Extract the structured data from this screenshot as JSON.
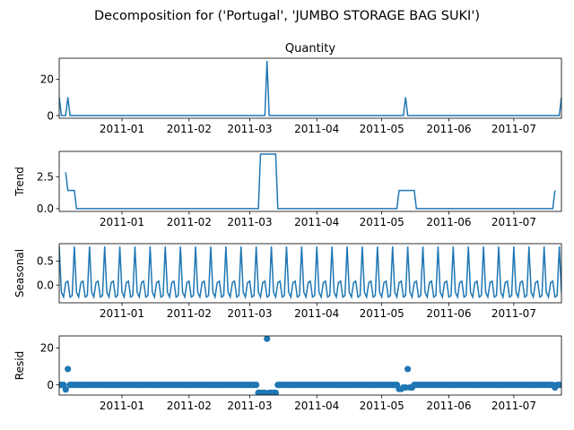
{
  "figure": {
    "suptitle": "Decomposition for ('Portugal', 'JUMBO STORAGE BAG SUKI')",
    "line_color": "#1f77b4"
  },
  "chart_data": [
    {
      "type": "line",
      "title": "Quantity",
      "ylabel": "",
      "xlim": [
        "2010-12-03",
        "2011-07-23"
      ],
      "ylim": [
        -1.5,
        31.5
      ],
      "yticks": [
        0,
        20
      ],
      "xticks": [
        "2011-01",
        "2011-02",
        "2011-03",
        "2011-04",
        "2011-05",
        "2011-06",
        "2011-07"
      ],
      "series": [
        {
          "x": [
            "2010-12-03",
            "2010-12-04",
            "2010-12-05",
            "2010-12-06",
            "2010-12-07",
            "2010-12-08",
            "2011-03-07",
            "2011-03-08",
            "2011-03-09",
            "2011-03-10",
            "2011-03-11",
            "2011-05-10",
            "2011-05-11",
            "2011-05-12",
            "2011-05-13",
            "2011-05-14",
            "2011-07-22",
            "2011-07-23"
          ],
          "y": [
            10,
            0,
            0,
            0,
            10,
            0,
            0,
            0,
            30,
            0,
            0,
            0,
            0,
            10,
            0,
            0,
            0,
            10
          ]
        }
      ]
    },
    {
      "type": "line",
      "title": "",
      "ylabel": "Trend",
      "xlim": [
        "2010-12-03",
        "2011-07-23"
      ],
      "ylim": [
        -0.22,
        4.5
      ],
      "yticks": [
        0.0,
        2.5
      ],
      "yticklabels": [
        "0.0",
        "2.5"
      ],
      "xticks": [
        "2011-01",
        "2011-02",
        "2011-03",
        "2011-04",
        "2011-05",
        "2011-06",
        "2011-07"
      ],
      "series": [
        {
          "x": [
            "2010-12-06",
            "2010-12-07",
            "2010-12-10",
            "2010-12-11",
            "2011-03-05",
            "2011-03-06",
            "2011-03-13",
            "2011-03-14",
            "2011-05-08",
            "2011-05-09",
            "2011-05-16",
            "2011-05-17",
            "2011-07-19",
            "2011-07-20"
          ],
          "y": [
            2.86,
            1.43,
            1.43,
            0,
            0,
            4.29,
            4.29,
            0,
            0,
            1.43,
            1.43,
            0,
            0,
            1.43
          ]
        }
      ]
    },
    {
      "type": "line",
      "title": "",
      "ylabel": "Seasonal",
      "xlim": [
        "2010-12-03",
        "2011-07-23"
      ],
      "ylim": [
        -0.37,
        0.86
      ],
      "yticks": [
        0.0,
        0.5
      ],
      "yticklabels": [
        "0.0",
        "0.5"
      ],
      "xticks": [
        "2011-01",
        "2011-02",
        "2011-03",
        "2011-04",
        "2011-05",
        "2011-06",
        "2011-07"
      ],
      "start": "2010-12-03",
      "period_pattern": [
        0.8,
        -0.15,
        -0.25,
        0.05,
        0.08,
        -0.25,
        -0.22
      ],
      "series": []
    },
    {
      "type": "scatter",
      "title": "",
      "ylabel": "Resid",
      "xlim": [
        "2010-12-03",
        "2011-07-23"
      ],
      "ylim": [
        -5.5,
        26.5
      ],
      "yticks": [
        0,
        20
      ],
      "xticks": [
        "2011-01",
        "2011-02",
        "2011-03",
        "2011-04",
        "2011-05",
        "2011-06",
        "2011-07"
      ],
      "baseline": 0,
      "special_points": [
        {
          "x": "2010-12-06",
          "y": -2.5
        },
        {
          "x": "2010-12-07",
          "y": 8.6
        },
        {
          "x": "2011-03-05",
          "y": -4.3
        },
        {
          "x": "2011-03-06",
          "y": -4.3
        },
        {
          "x": "2011-03-07",
          "y": -4.3
        },
        {
          "x": "2011-03-08",
          "y": -4.3
        },
        {
          "x": "2011-03-09",
          "y": 25.0
        },
        {
          "x": "2011-03-10",
          "y": -4.3
        },
        {
          "x": "2011-03-11",
          "y": -4.3
        },
        {
          "x": "2011-03-12",
          "y": -4.3
        },
        {
          "x": "2011-03-13",
          "y": -4.3
        },
        {
          "x": "2011-05-09",
          "y": -2.2
        },
        {
          "x": "2011-05-10",
          "y": -2.2
        },
        {
          "x": "2011-05-11",
          "y": -1.4
        },
        {
          "x": "2011-05-12",
          "y": -1.4
        },
        {
          "x": "2011-05-13",
          "y": 8.6
        },
        {
          "x": "2011-05-14",
          "y": -1.4
        },
        {
          "x": "2011-05-15",
          "y": -1.4
        },
        {
          "x": "2011-07-20",
          "y": -1.4
        }
      ]
    }
  ]
}
